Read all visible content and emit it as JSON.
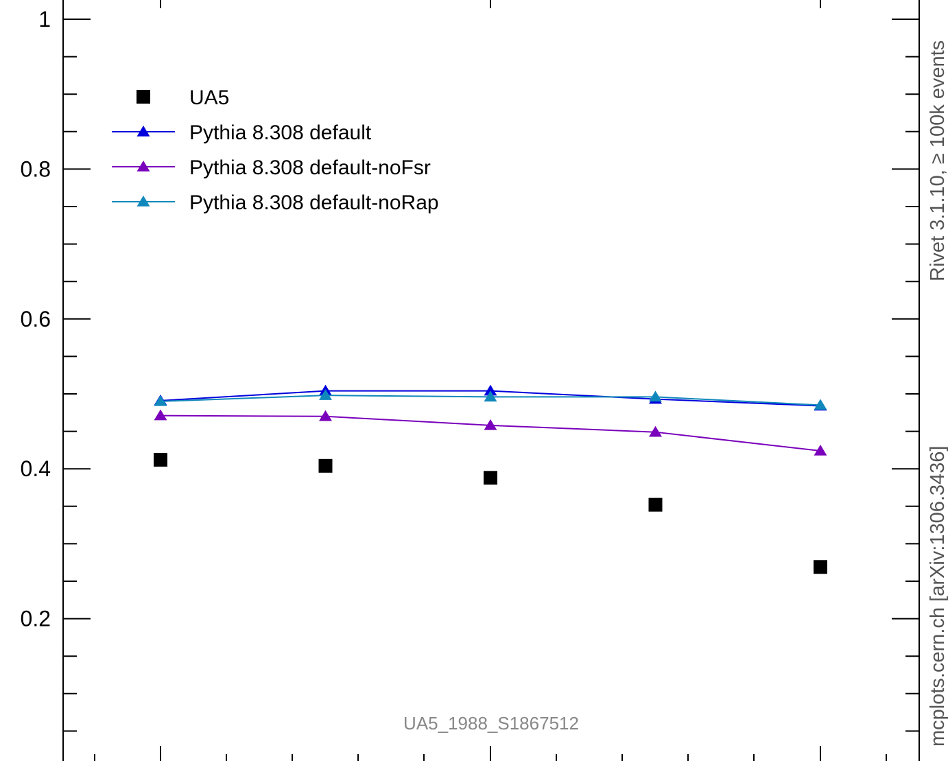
{
  "chart_data": {
    "type": "line",
    "title": "",
    "xlabel": "",
    "ylabel": "",
    "ylim": [
      0.0,
      1.0
    ],
    "yticks": [
      {
        "value": 0.2,
        "label": "0.2"
      },
      {
        "value": 0.4,
        "label": "0.4"
      },
      {
        "value": 0.6,
        "label": "0.6"
      },
      {
        "value": 0.8,
        "label": "0.8"
      },
      {
        "value": 1.0,
        "label": "1"
      }
    ],
    "x": [
      1,
      2,
      3,
      4,
      5
    ],
    "series": [
      {
        "name": "UA5",
        "color": "#000000",
        "marker": "square",
        "line": false,
        "values": [
          0.412,
          0.404,
          0.388,
          0.352,
          0.269
        ]
      },
      {
        "name": "Pythia 8.308 default",
        "color": "#0000dd",
        "marker": "triangle",
        "line": true,
        "values": [
          0.491,
          0.504,
          0.504,
          0.493,
          0.484
        ]
      },
      {
        "name": "Pythia 8.308 default-noFsr",
        "color": "#7a00bb",
        "marker": "triangle",
        "line": true,
        "values": [
          0.471,
          0.47,
          0.458,
          0.449,
          0.424
        ]
      },
      {
        "name": "Pythia 8.308 default-noRap",
        "color": "#1188bb",
        "marker": "triangle",
        "line": true,
        "values": [
          0.49,
          0.498,
          0.496,
          0.496,
          0.485
        ]
      }
    ],
    "legend_position": "top-left",
    "analysis_label": "UA5_1988_S1867512",
    "side_label_top": "Rivet 3.1.10, ≥ 100k events",
    "side_label_bottom": "mcplots.cern.ch [arXiv:1306.3436]"
  }
}
